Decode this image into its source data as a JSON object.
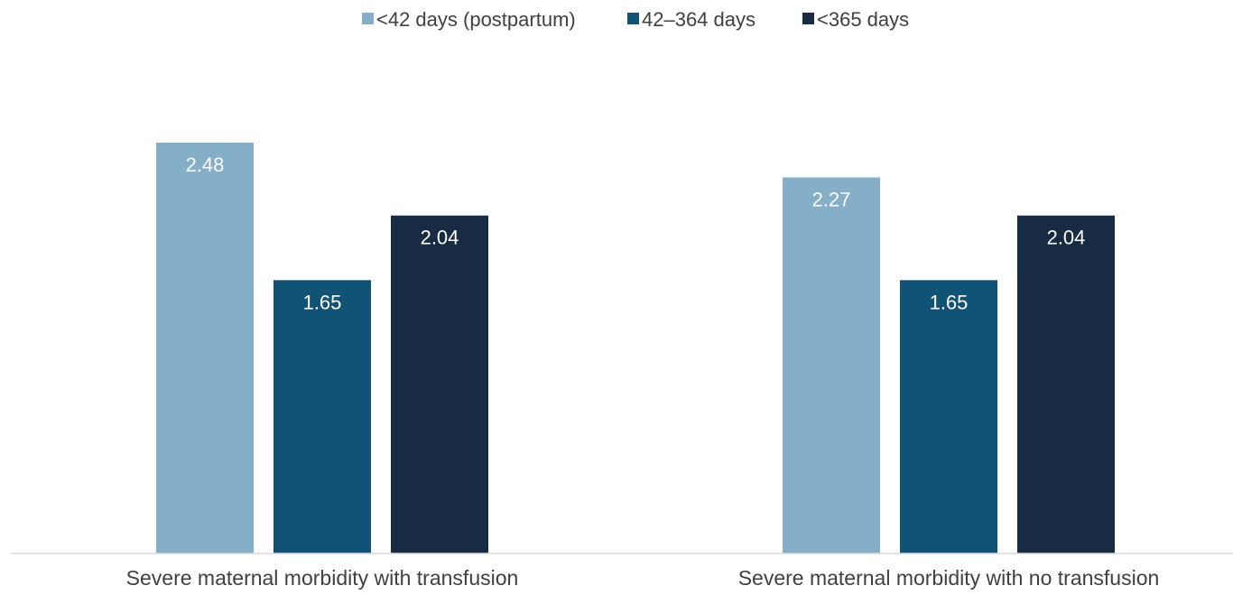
{
  "chart_data": {
    "type": "bar",
    "title": "",
    "xlabel": "",
    "ylabel": "",
    "categories": [
      "Severe maternal morbidity with transfusion",
      "Severe maternal morbidity with no transfusion"
    ],
    "series": [
      {
        "name": "<42 days (postpartum)",
        "color": "#85aec8",
        "values": [
          2.48,
          2.27
        ]
      },
      {
        "name": "42–364 days",
        "color": "#115376",
        "values": [
          1.65,
          1.65
        ]
      },
      {
        "name": "<365 days",
        "color": "#172b42",
        "values": [
          2.04,
          2.04
        ]
      }
    ],
    "data_labels": true,
    "ylim": [
      0,
      2.48
    ],
    "y_axis_visible": false,
    "grid": false,
    "legend_position": "top-center"
  }
}
